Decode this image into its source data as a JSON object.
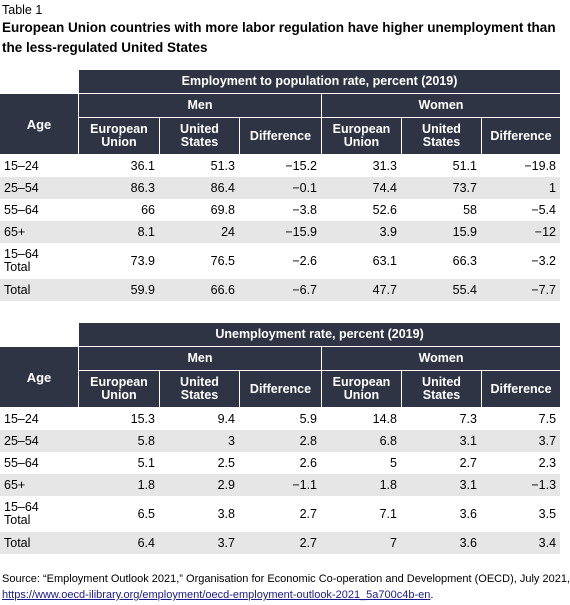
{
  "table_label": "Table 1",
  "title": "European Union countries with more labor regulation have higher unemployment than the less-regulated United States",
  "headers": {
    "age": "Age",
    "men": "Men",
    "women": "Women",
    "eu": "European Union",
    "us": "United States",
    "diff": "Difference"
  },
  "table1": {
    "title": "Employment to population rate, percent (2019)",
    "rows": [
      {
        "age": "15–24",
        "v": [
          "36.1",
          "51.3",
          "−15.2",
          "31.3",
          "51.1",
          "−19.8"
        ]
      },
      {
        "age": "25–54",
        "v": [
          "86.3",
          "86.4",
          "−0.1",
          "74.4",
          "73.7",
          "1"
        ]
      },
      {
        "age": "55–64",
        "v": [
          "66",
          "69.8",
          "−3.8",
          "52.6",
          "58",
          "−5.4"
        ]
      },
      {
        "age": "65+",
        "v": [
          "8.1",
          "24",
          "−15.9",
          "3.9",
          "15.9",
          "−12"
        ]
      },
      {
        "age": "15–64 Total",
        "v": [
          "73.9",
          "76.5",
          "−2.6",
          "63.1",
          "66.3",
          "−3.2"
        ]
      },
      {
        "age": "Total",
        "v": [
          "59.9",
          "66.6",
          "−6.7",
          "47.7",
          "55.4",
          "−7.7"
        ]
      }
    ]
  },
  "table2": {
    "title": "Unemployment rate, percent (2019)",
    "rows": [
      {
        "age": "15–24",
        "v": [
          "15.3",
          "9.4",
          "5.9",
          "14.8",
          "7.3",
          "7.5"
        ]
      },
      {
        "age": "25–54",
        "v": [
          "5.8",
          "3",
          "2.8",
          "6.8",
          "3.1",
          "3.7"
        ]
      },
      {
        "age": "55–64",
        "v": [
          "5.1",
          "2.5",
          "2.6",
          "5",
          "2.7",
          "2.3"
        ]
      },
      {
        "age": "65+",
        "v": [
          "1.8",
          "2.9",
          "−1.1",
          "1.8",
          "3.1",
          "−1.3"
        ]
      },
      {
        "age": "15–64 Total",
        "v": [
          "6.5",
          "3.8",
          "2.7",
          "7.1",
          "3.6",
          "3.5"
        ]
      },
      {
        "age": "Total",
        "v": [
          "6.4",
          "3.7",
          "2.7",
          "7",
          "3.6",
          "3.4"
        ]
      }
    ]
  },
  "source": {
    "text": "Source: “Employment Outlook 2021,” Organisation for Economic Co-operation and Development (OECD), July 2021,",
    "link": "https://www.oecd-ilibrary.org/employment/oecd-employment-outlook-2021_5a700c4b-en",
    "end": "."
  }
}
